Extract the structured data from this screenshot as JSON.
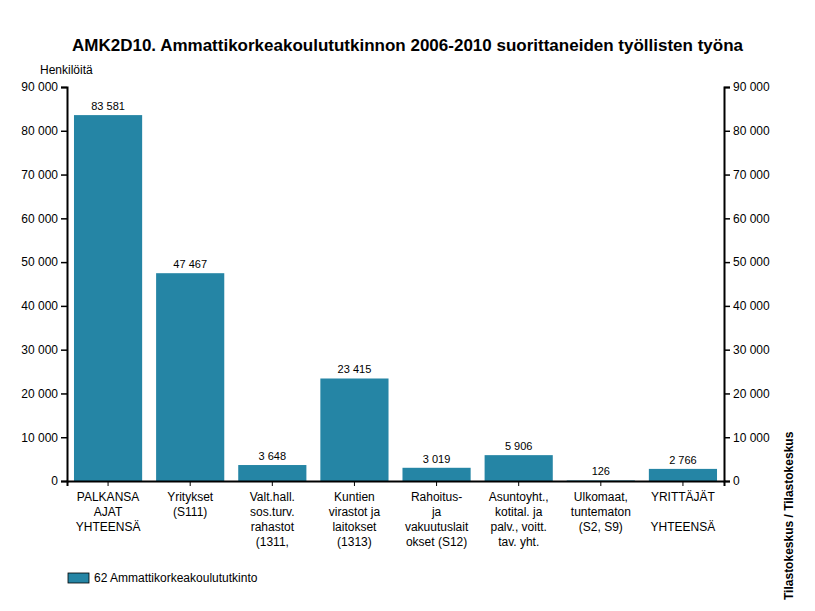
{
  "chart_data": {
    "type": "bar",
    "title": "AMK2D10. Ammattikorkeakoulututkinnon 2006-2010 suorittaneiden työllisten työna",
    "y_label": "Henkilöitä",
    "source": "Tilastokeskus / Tilastokeskus",
    "categories": [
      "PALKANSA\nAJAT\nYHTEENSÄ",
      "Yritykset\n(S111)",
      "Valt.hall.\nsos.turv.\nrahastot\n(1311,",
      "Kuntien\nvirastot ja\nlaitokset\n(1313)",
      "Rahoitus-\nja\nvakuutuslait\nokset (S12)",
      "Asuntoyht.,\nkotital. ja\npalv., voitt.\ntav. yht.",
      "Ulkomaat,\ntuntematon\n(S2, S9)",
      "YRITTÄJÄT\n\nYHTEENSÄ"
    ],
    "series": [
      {
        "name": "62 Ammattikorkeakoulututkinto",
        "color": "#2585a5",
        "values": [
          83581,
          47467,
          3648,
          23415,
          3019,
          5906,
          126,
          2766
        ],
        "value_labels": [
          "83 581",
          "47 467",
          "3 648",
          "23 415",
          "3 019",
          "5 906",
          "126",
          "2 766"
        ]
      }
    ],
    "ylim": [
      0,
      90000
    ],
    "yticks": [
      0,
      {
        "value": 10000,
        "label": "10 000"
      },
      {
        "value": 20000,
        "label": "20 000"
      },
      {
        "value": 30000,
        "label": "30 000"
      },
      {
        "value": 40000,
        "label": "40 000"
      },
      {
        "value": 50000,
        "label": "50 000"
      },
      {
        "value": 60000,
        "label": "60 000"
      },
      {
        "value": 70000,
        "label": "70 000"
      },
      {
        "value": 80000,
        "label": "80 000"
      },
      {
        "value": 90000,
        "label": "90 000"
      }
    ],
    "y2lim": [
      0,
      90000
    ],
    "y2ticks": [
      0,
      {
        "value": 10000,
        "label": "10 000"
      },
      {
        "value": 20000,
        "label": "20 000"
      },
      {
        "value": 30000,
        "label": "30 000"
      },
      {
        "value": 40000,
        "label": "40 000"
      },
      {
        "value": 50000,
        "label": "50 000"
      },
      {
        "value": 60000,
        "label": "60 000"
      },
      {
        "value": 70000,
        "label": "70 000"
      },
      {
        "value": 80000,
        "label": "80 000"
      },
      {
        "value": 90000,
        "label": "90 000"
      }
    ],
    "data_labels": true,
    "legend": "bottom-left",
    "grid": false
  }
}
